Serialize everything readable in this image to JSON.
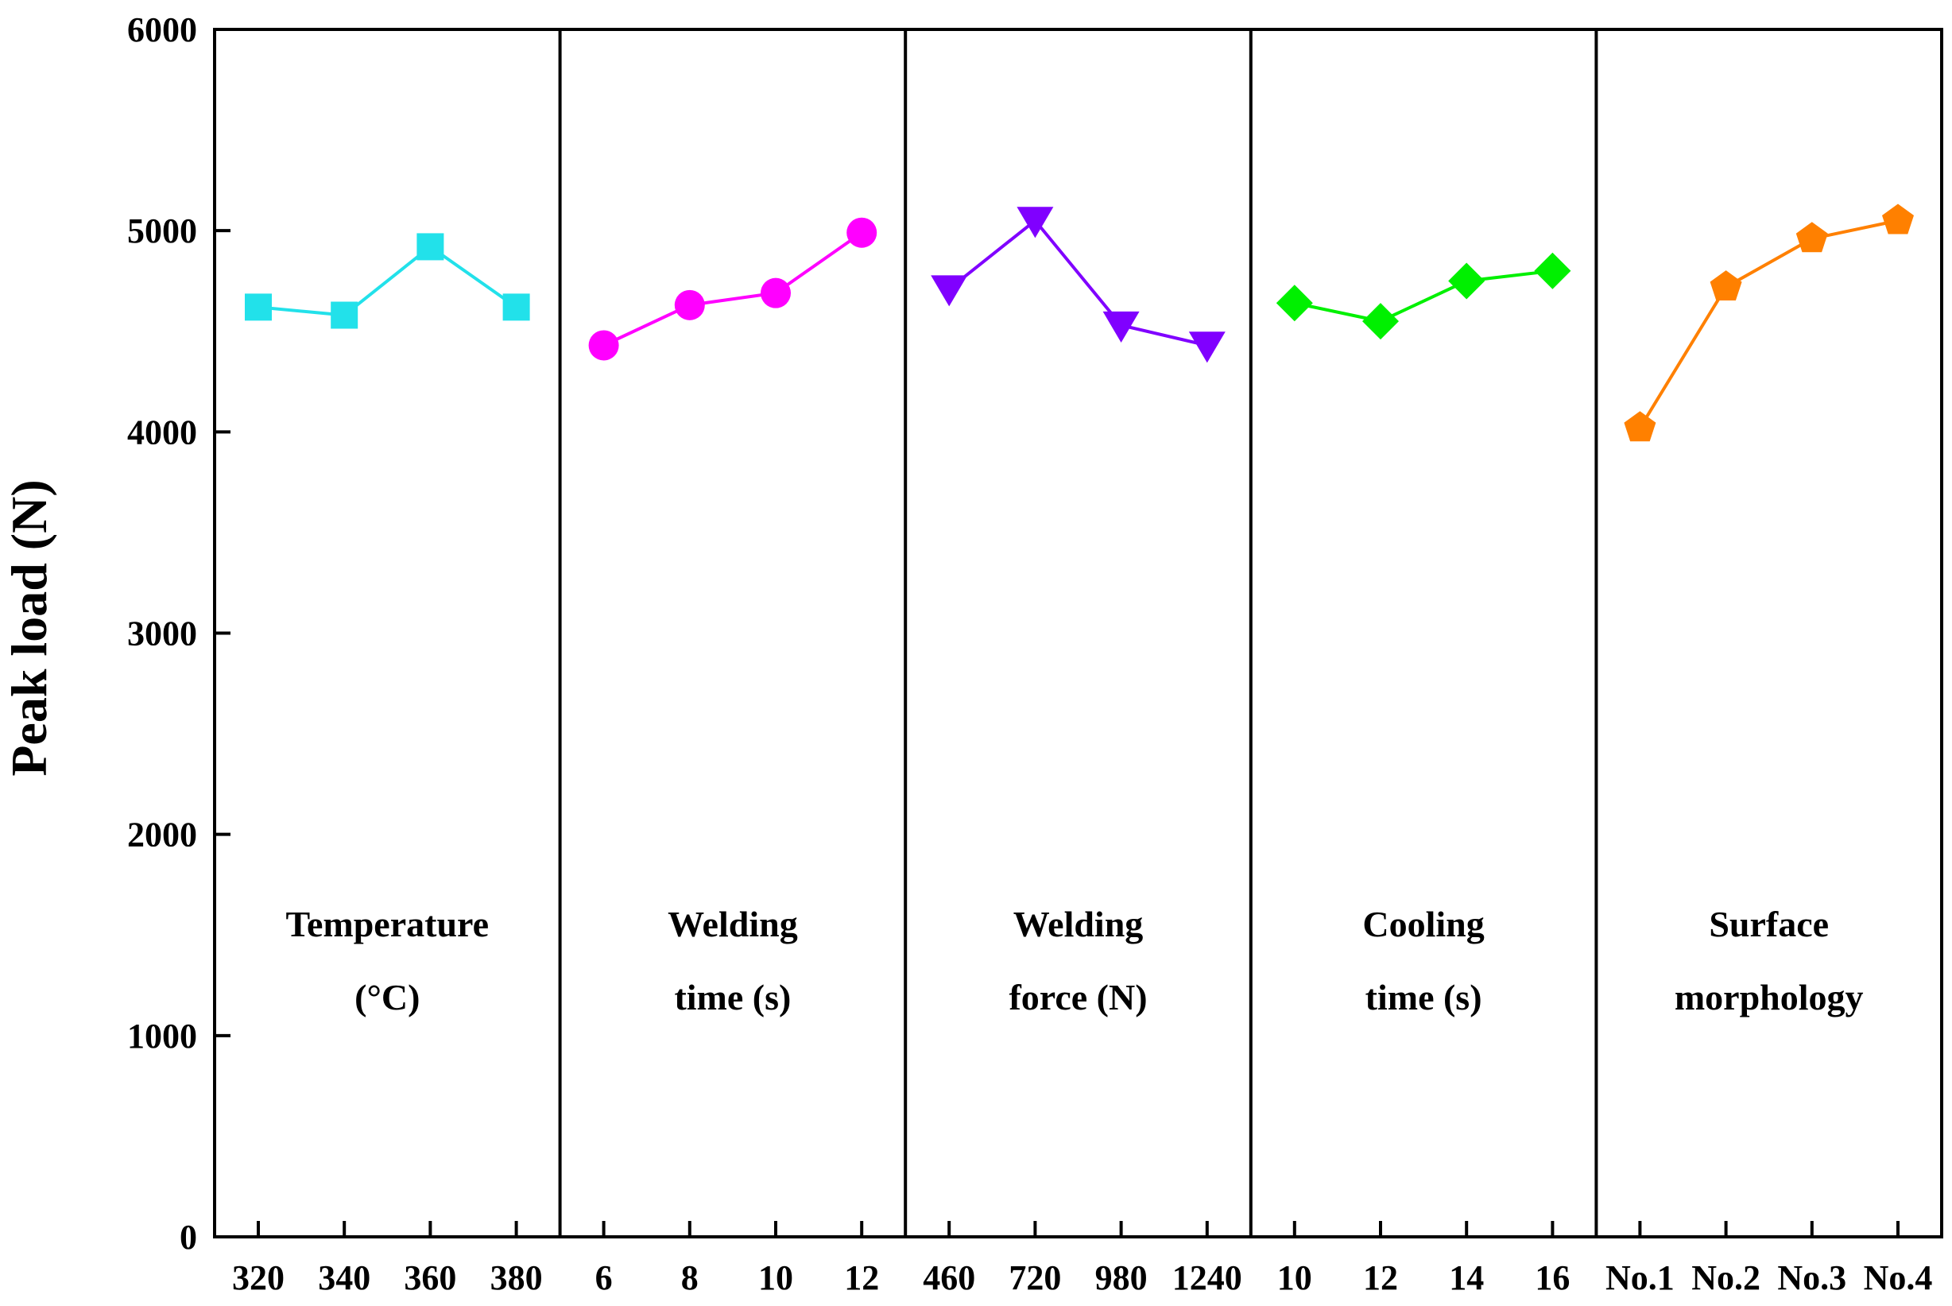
{
  "chart_data": {
    "type": "line",
    "ylabel": "Peak load (N)",
    "ylim": [
      0,
      6000
    ],
    "yticks": [
      "0",
      "1000",
      "2000",
      "3000",
      "4000",
      "5000",
      "6000"
    ],
    "grid": false,
    "panels": [
      {
        "label_lines": [
          "Temperature",
          "(°C)"
        ],
        "categories": [
          "320",
          "340",
          "360",
          "380"
        ],
        "values": [
          4620,
          4580,
          4920,
          4620
        ],
        "marker": "square",
        "color": "#22E1EA"
      },
      {
        "label_lines": [
          "Welding",
          "time (s)"
        ],
        "categories": [
          "6",
          "8",
          "10",
          "12"
        ],
        "values": [
          4430,
          4630,
          4690,
          4990
        ],
        "marker": "circle",
        "color": "#FF00FF"
      },
      {
        "label_lines": [
          "Welding",
          "force (N)"
        ],
        "categories": [
          "460",
          "720",
          "980",
          "1240"
        ],
        "values": [
          4710,
          5050,
          4530,
          4430
        ],
        "marker": "triangle-down",
        "color": "#8000FF"
      },
      {
        "label_lines": [
          "Cooling",
          "time (s)"
        ],
        "categories": [
          "10",
          "12",
          "14",
          "16"
        ],
        "values": [
          4640,
          4550,
          4750,
          4800
        ],
        "marker": "diamond",
        "color": "#00F000"
      },
      {
        "label_lines": [
          "Surface",
          "morphology"
        ],
        "categories": [
          "No.1",
          "No.2",
          "No.3",
          "No.4"
        ],
        "values": [
          4020,
          4720,
          4960,
          5050
        ],
        "marker": "pentagon",
        "color": "#FF8000"
      }
    ]
  }
}
